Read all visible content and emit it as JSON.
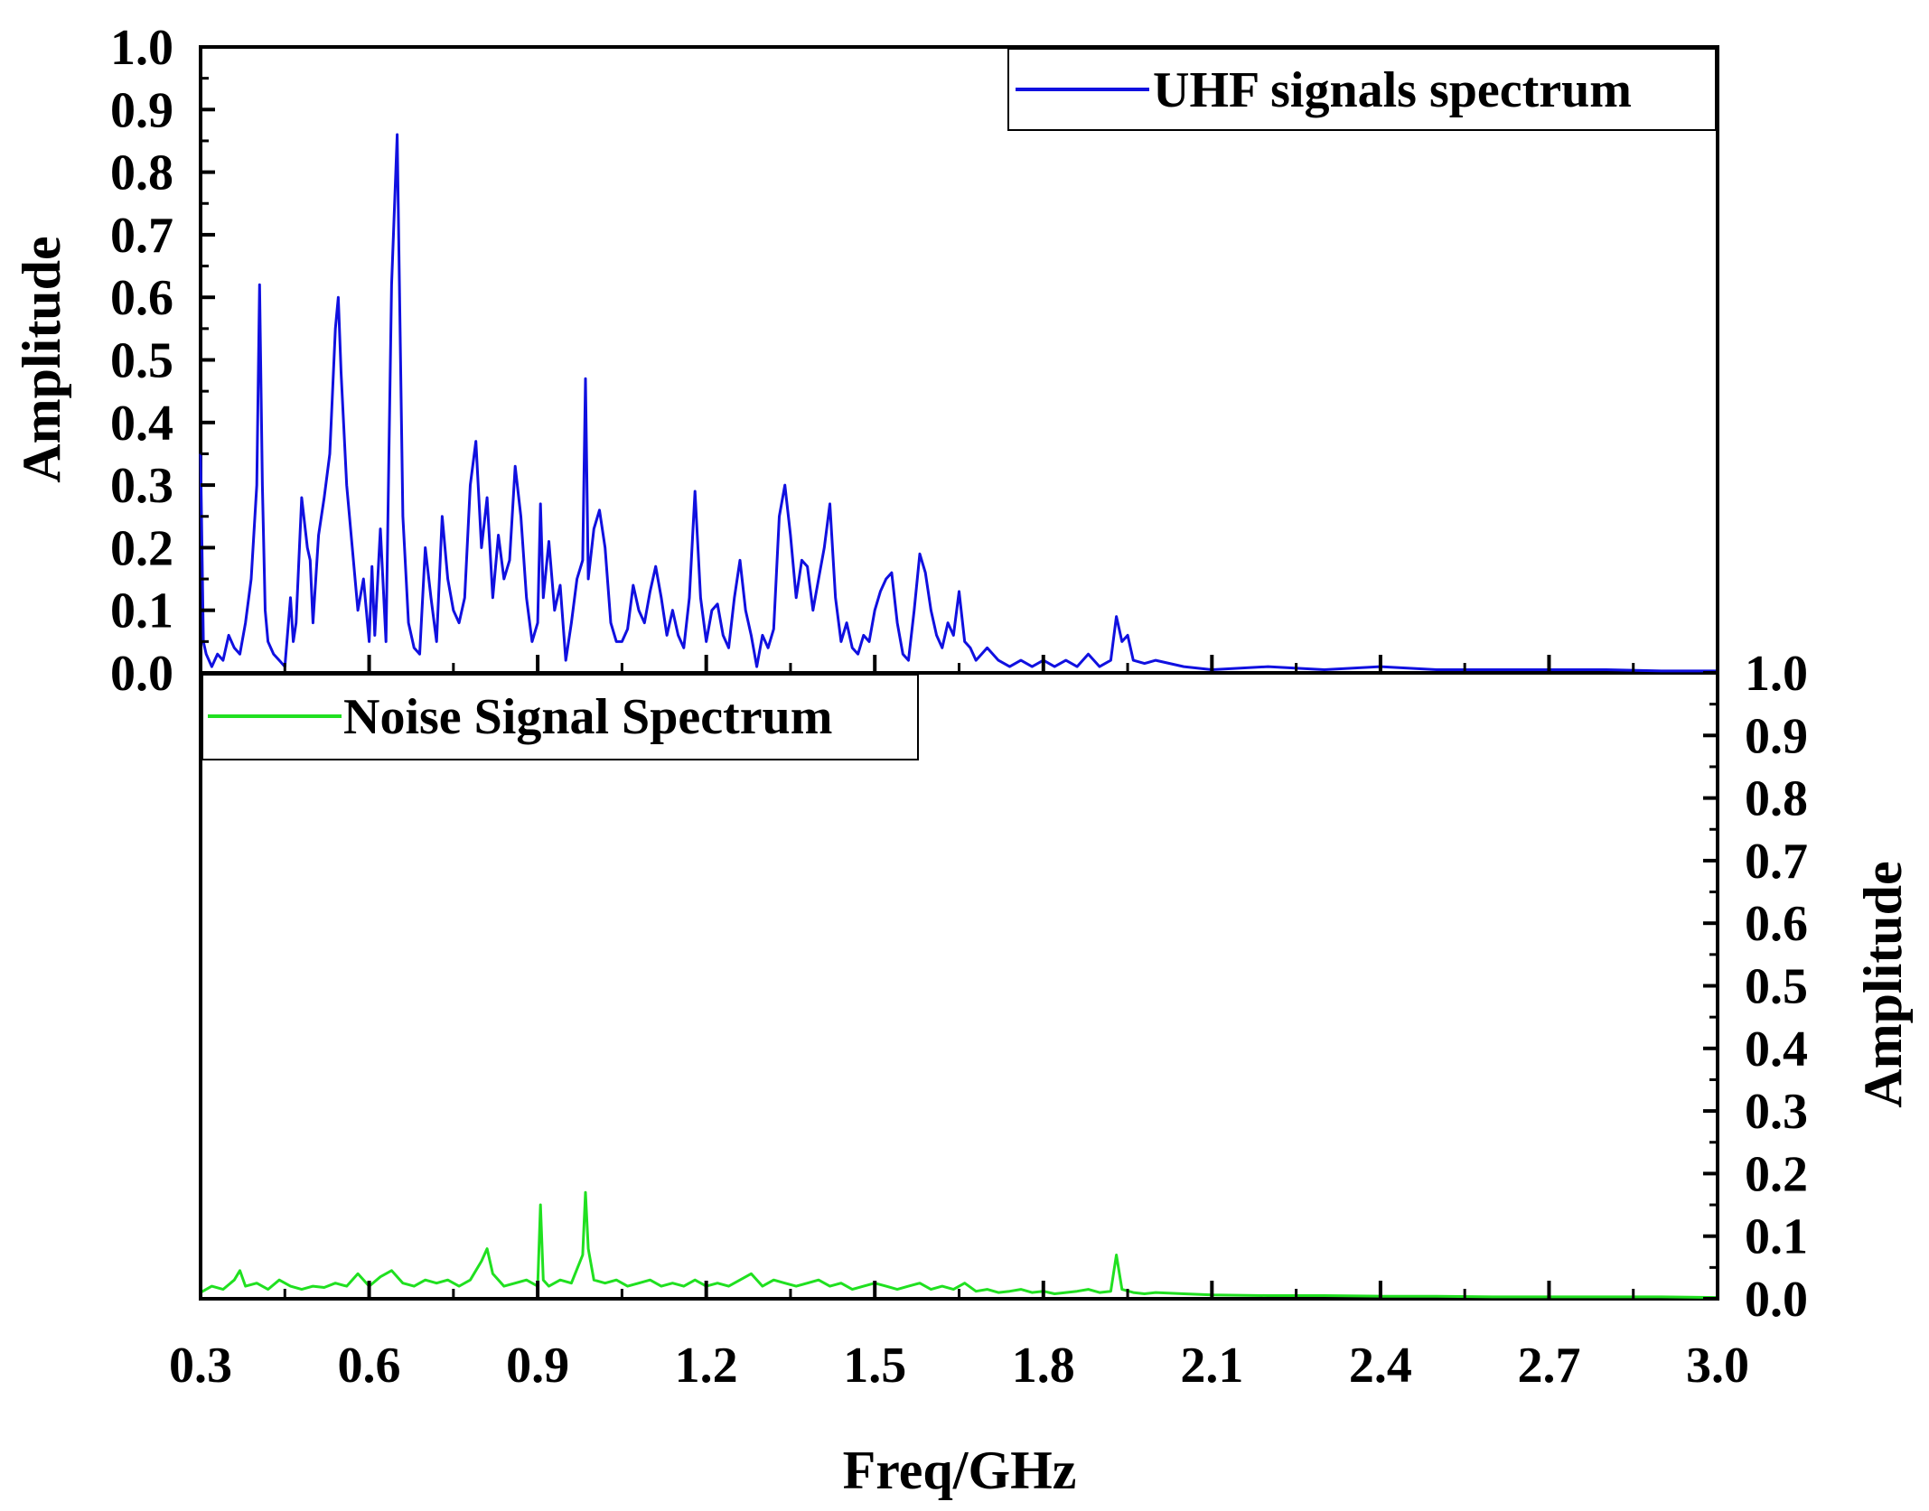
{
  "chart_data": {
    "type": "line",
    "title": "",
    "xlabel": "Freq/GHz",
    "xlim": [
      0.3,
      3.0
    ],
    "x_ticks": [
      "0.3",
      "0.6",
      "0.9",
      "1.2",
      "1.5",
      "1.8",
      "2.1",
      "2.4",
      "2.7",
      "3.0"
    ],
    "panels": [
      {
        "name": "top",
        "ylabel": "Amplitude",
        "ylabel_side": "left",
        "ylim": [
          0,
          1.0
        ],
        "y_ticks": [
          "0.0",
          "0.1",
          "0.2",
          "0.3",
          "0.4",
          "0.5",
          "0.6",
          "0.7",
          "0.8",
          "0.9",
          "1.0"
        ],
        "legend": "UHF signals spectrum",
        "legend_position": "top-right",
        "series": {
          "name": "UHF signals spectrum",
          "color": "#1010e0",
          "x": [
            0.3,
            0.305,
            0.31,
            0.32,
            0.33,
            0.34,
            0.35,
            0.36,
            0.37,
            0.38,
            0.39,
            0.4,
            0.405,
            0.41,
            0.415,
            0.42,
            0.43,
            0.44,
            0.45,
            0.46,
            0.465,
            0.47,
            0.48,
            0.49,
            0.495,
            0.5,
            0.51,
            0.52,
            0.53,
            0.54,
            0.545,
            0.55,
            0.56,
            0.57,
            0.58,
            0.59,
            0.6,
            0.605,
            0.61,
            0.62,
            0.63,
            0.64,
            0.645,
            0.65,
            0.66,
            0.67,
            0.68,
            0.69,
            0.7,
            0.71,
            0.72,
            0.73,
            0.74,
            0.75,
            0.76,
            0.77,
            0.78,
            0.79,
            0.8,
            0.81,
            0.82,
            0.83,
            0.84,
            0.85,
            0.86,
            0.87,
            0.88,
            0.89,
            0.9,
            0.905,
            0.91,
            0.92,
            0.93,
            0.94,
            0.95,
            0.96,
            0.97,
            0.98,
            0.985,
            0.99,
            1.0,
            1.01,
            1.02,
            1.03,
            1.04,
            1.05,
            1.06,
            1.07,
            1.08,
            1.09,
            1.1,
            1.11,
            1.12,
            1.13,
            1.14,
            1.15,
            1.16,
            1.17,
            1.18,
            1.19,
            1.2,
            1.21,
            1.22,
            1.23,
            1.24,
            1.25,
            1.26,
            1.27,
            1.28,
            1.29,
            1.3,
            1.31,
            1.32,
            1.33,
            1.34,
            1.35,
            1.36,
            1.37,
            1.38,
            1.39,
            1.4,
            1.41,
            1.42,
            1.43,
            1.44,
            1.45,
            1.46,
            1.47,
            1.48,
            1.49,
            1.5,
            1.51,
            1.52,
            1.53,
            1.54,
            1.55,
            1.56,
            1.57,
            1.58,
            1.59,
            1.6,
            1.61,
            1.62,
            1.63,
            1.64,
            1.65,
            1.66,
            1.67,
            1.68,
            1.69,
            1.7,
            1.72,
            1.74,
            1.76,
            1.78,
            1.8,
            1.82,
            1.84,
            1.86,
            1.88,
            1.9,
            1.92,
            1.93,
            1.94,
            1.95,
            1.96,
            1.98,
            2.0,
            2.05,
            2.1,
            2.2,
            2.3,
            2.4,
            2.5,
            2.6,
            2.7,
            2.8,
            2.9,
            3.0
          ],
          "y": [
            0.35,
            0.05,
            0.03,
            0.01,
            0.03,
            0.02,
            0.06,
            0.04,
            0.03,
            0.08,
            0.15,
            0.3,
            0.62,
            0.3,
            0.1,
            0.05,
            0.03,
            0.02,
            0.01,
            0.12,
            0.05,
            0.08,
            0.28,
            0.2,
            0.18,
            0.08,
            0.22,
            0.28,
            0.35,
            0.55,
            0.6,
            0.48,
            0.3,
            0.2,
            0.1,
            0.15,
            0.05,
            0.17,
            0.06,
            0.23,
            0.05,
            0.62,
            0.74,
            0.86,
            0.25,
            0.08,
            0.04,
            0.03,
            0.2,
            0.12,
            0.05,
            0.25,
            0.15,
            0.1,
            0.08,
            0.12,
            0.3,
            0.37,
            0.2,
            0.28,
            0.12,
            0.22,
            0.15,
            0.18,
            0.33,
            0.25,
            0.12,
            0.05,
            0.08,
            0.27,
            0.12,
            0.21,
            0.1,
            0.14,
            0.02,
            0.08,
            0.15,
            0.18,
            0.47,
            0.15,
            0.23,
            0.26,
            0.2,
            0.08,
            0.05,
            0.05,
            0.07,
            0.14,
            0.1,
            0.08,
            0.13,
            0.17,
            0.12,
            0.06,
            0.1,
            0.06,
            0.04,
            0.12,
            0.29,
            0.12,
            0.05,
            0.1,
            0.11,
            0.06,
            0.04,
            0.12,
            0.18,
            0.1,
            0.06,
            0.01,
            0.06,
            0.04,
            0.07,
            0.25,
            0.3,
            0.22,
            0.12,
            0.18,
            0.17,
            0.1,
            0.15,
            0.2,
            0.27,
            0.12,
            0.05,
            0.08,
            0.04,
            0.03,
            0.06,
            0.05,
            0.1,
            0.13,
            0.15,
            0.16,
            0.08,
            0.03,
            0.02,
            0.1,
            0.19,
            0.16,
            0.1,
            0.06,
            0.04,
            0.08,
            0.06,
            0.13,
            0.05,
            0.04,
            0.02,
            0.03,
            0.04,
            0.02,
            0.01,
            0.02,
            0.01,
            0.02,
            0.01,
            0.02,
            0.01,
            0.03,
            0.01,
            0.02,
            0.09,
            0.05,
            0.06,
            0.02,
            0.015,
            0.02,
            0.01,
            0.005,
            0.01,
            0.005,
            0.01,
            0.005,
            0.005,
            0.005,
            0.005,
            0.003,
            0.003
          ]
        }
      },
      {
        "name": "bottom",
        "ylabel": "Amplitude",
        "ylabel_side": "right",
        "ylim": [
          0,
          1.0
        ],
        "y_ticks": [
          "0.0",
          "0.1",
          "0.2",
          "0.3",
          "0.4",
          "0.5",
          "0.6",
          "0.7",
          "0.8",
          "0.9",
          "1.0"
        ],
        "legend": "Noise Signal Spectrum",
        "legend_position": "top-left",
        "series": {
          "name": "Noise Signal Spectrum",
          "color": "#20e020",
          "x": [
            0.3,
            0.32,
            0.34,
            0.36,
            0.37,
            0.38,
            0.4,
            0.42,
            0.44,
            0.46,
            0.48,
            0.5,
            0.52,
            0.54,
            0.56,
            0.58,
            0.6,
            0.62,
            0.64,
            0.66,
            0.68,
            0.7,
            0.72,
            0.74,
            0.76,
            0.78,
            0.8,
            0.81,
            0.82,
            0.84,
            0.86,
            0.88,
            0.9,
            0.905,
            0.91,
            0.92,
            0.94,
            0.96,
            0.98,
            0.985,
            0.99,
            1.0,
            1.02,
            1.04,
            1.06,
            1.08,
            1.1,
            1.12,
            1.14,
            1.16,
            1.18,
            1.2,
            1.22,
            1.24,
            1.26,
            1.28,
            1.3,
            1.32,
            1.34,
            1.36,
            1.38,
            1.4,
            1.42,
            1.44,
            1.46,
            1.48,
            1.5,
            1.52,
            1.54,
            1.56,
            1.58,
            1.6,
            1.62,
            1.64,
            1.66,
            1.68,
            1.7,
            1.72,
            1.74,
            1.76,
            1.78,
            1.8,
            1.82,
            1.84,
            1.86,
            1.88,
            1.9,
            1.92,
            1.93,
            1.94,
            1.96,
            1.98,
            2.0,
            2.05,
            2.1,
            2.2,
            2.3,
            2.4,
            2.5,
            2.6,
            2.7,
            2.8,
            2.9,
            3.0
          ],
          "y": [
            0.01,
            0.02,
            0.015,
            0.03,
            0.045,
            0.02,
            0.025,
            0.015,
            0.03,
            0.02,
            0.015,
            0.02,
            0.018,
            0.025,
            0.02,
            0.04,
            0.02,
            0.035,
            0.045,
            0.025,
            0.02,
            0.03,
            0.025,
            0.03,
            0.02,
            0.03,
            0.06,
            0.08,
            0.04,
            0.02,
            0.025,
            0.03,
            0.02,
            0.15,
            0.03,
            0.02,
            0.03,
            0.025,
            0.07,
            0.17,
            0.08,
            0.03,
            0.025,
            0.03,
            0.02,
            0.025,
            0.03,
            0.02,
            0.025,
            0.02,
            0.03,
            0.02,
            0.025,
            0.02,
            0.03,
            0.04,
            0.02,
            0.03,
            0.025,
            0.02,
            0.025,
            0.03,
            0.02,
            0.025,
            0.015,
            0.02,
            0.025,
            0.02,
            0.015,
            0.02,
            0.025,
            0.015,
            0.02,
            0.015,
            0.025,
            0.012,
            0.015,
            0.01,
            0.012,
            0.015,
            0.01,
            0.012,
            0.008,
            0.01,
            0.012,
            0.015,
            0.01,
            0.012,
            0.07,
            0.015,
            0.01,
            0.008,
            0.01,
            0.008,
            0.006,
            0.005,
            0.005,
            0.004,
            0.004,
            0.003,
            0.003,
            0.003,
            0.003,
            0.002
          ]
        }
      }
    ]
  }
}
